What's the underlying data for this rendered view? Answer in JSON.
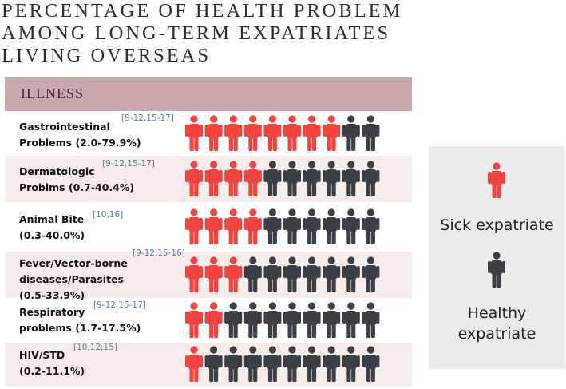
{
  "title_lines": [
    "PERCENTAGE OF HEALTH PROBLEM",
    "AMONG LONG-TERM EXPATRIATES",
    "LIVING OVERSEAS"
  ],
  "header": "ILLNESS",
  "legend": {
    "sick_label": "Sick expatriate",
    "healthy_lines": [
      "Healthy",
      "expatriate"
    ]
  },
  "colors": {
    "sick": "#f2433f",
    "healthy": "#3a3f46",
    "header": "#c9a7ab",
    "shade": "#f6ecea"
  },
  "icon": "person-icon",
  "icons_per_row": 10,
  "rows": [
    {
      "label_lines": [
        "Gastrointestinal",
        "Problems (2.0-79.9%)"
      ],
      "refs": "[9-12,15-17]",
      "sick": 8
    },
    {
      "label_lines": [
        "Dermatologic",
        "Problms (0.7-40.4%)"
      ],
      "refs": "[9-12,15-17]",
      "sick": 4
    },
    {
      "label_lines": [
        "Animal Bite",
        "(0.3-40.0%)"
      ],
      "refs": "[10,16]",
      "sick": 4
    },
    {
      "label_lines": [
        "Fever/Vector-borne",
        "diseases/Parasites",
        "(0.5-33.9%)"
      ],
      "refs": "[9-12,15-16]",
      "sick": 3
    },
    {
      "label_lines": [
        "Respiratory",
        "problems (1.7-17.5%)"
      ],
      "refs": "[9-12,15-17]",
      "sick": 2
    },
    {
      "label_lines": [
        "HIV/STD",
        "(0.2-11.1%)"
      ],
      "refs": "[10,12,15]",
      "sick": 1
    }
  ],
  "chart_data": {
    "type": "table",
    "title": "PERCENTAGE OF HEALTH PROBLEM AMONG LONG-TERM EXPATRIATES LIVING OVERSEAS",
    "column_header": "ILLNESS",
    "categories": [
      "Gastrointestinal Problems",
      "Dermatologic Problms",
      "Animal Bite",
      "Fever/Vector-borne diseases/Parasites",
      "Respiratory problems",
      "HIV/STD"
    ],
    "ranges": [
      "2.0-79.9%",
      "0.7-40.4%",
      "0.3-40.0%",
      "0.5-33.9%",
      "1.7-17.5%",
      "0.2-11.1%"
    ],
    "references": [
      "[9-12,15-17]",
      "[9-12,15-17]",
      "[10,16]",
      "[9-12,15-16]",
      "[9-12,15-17]",
      "[10,12,15]"
    ],
    "series": [
      {
        "name": "Sick expatriate",
        "values": [
          8,
          4,
          4,
          3,
          2,
          1
        ]
      },
      {
        "name": "Healthy expatriate",
        "values": [
          2,
          6,
          6,
          7,
          8,
          9
        ]
      }
    ],
    "icons_total_per_row": 10,
    "legend": [
      "Sick expatriate",
      "Healthy expatriate"
    ]
  }
}
